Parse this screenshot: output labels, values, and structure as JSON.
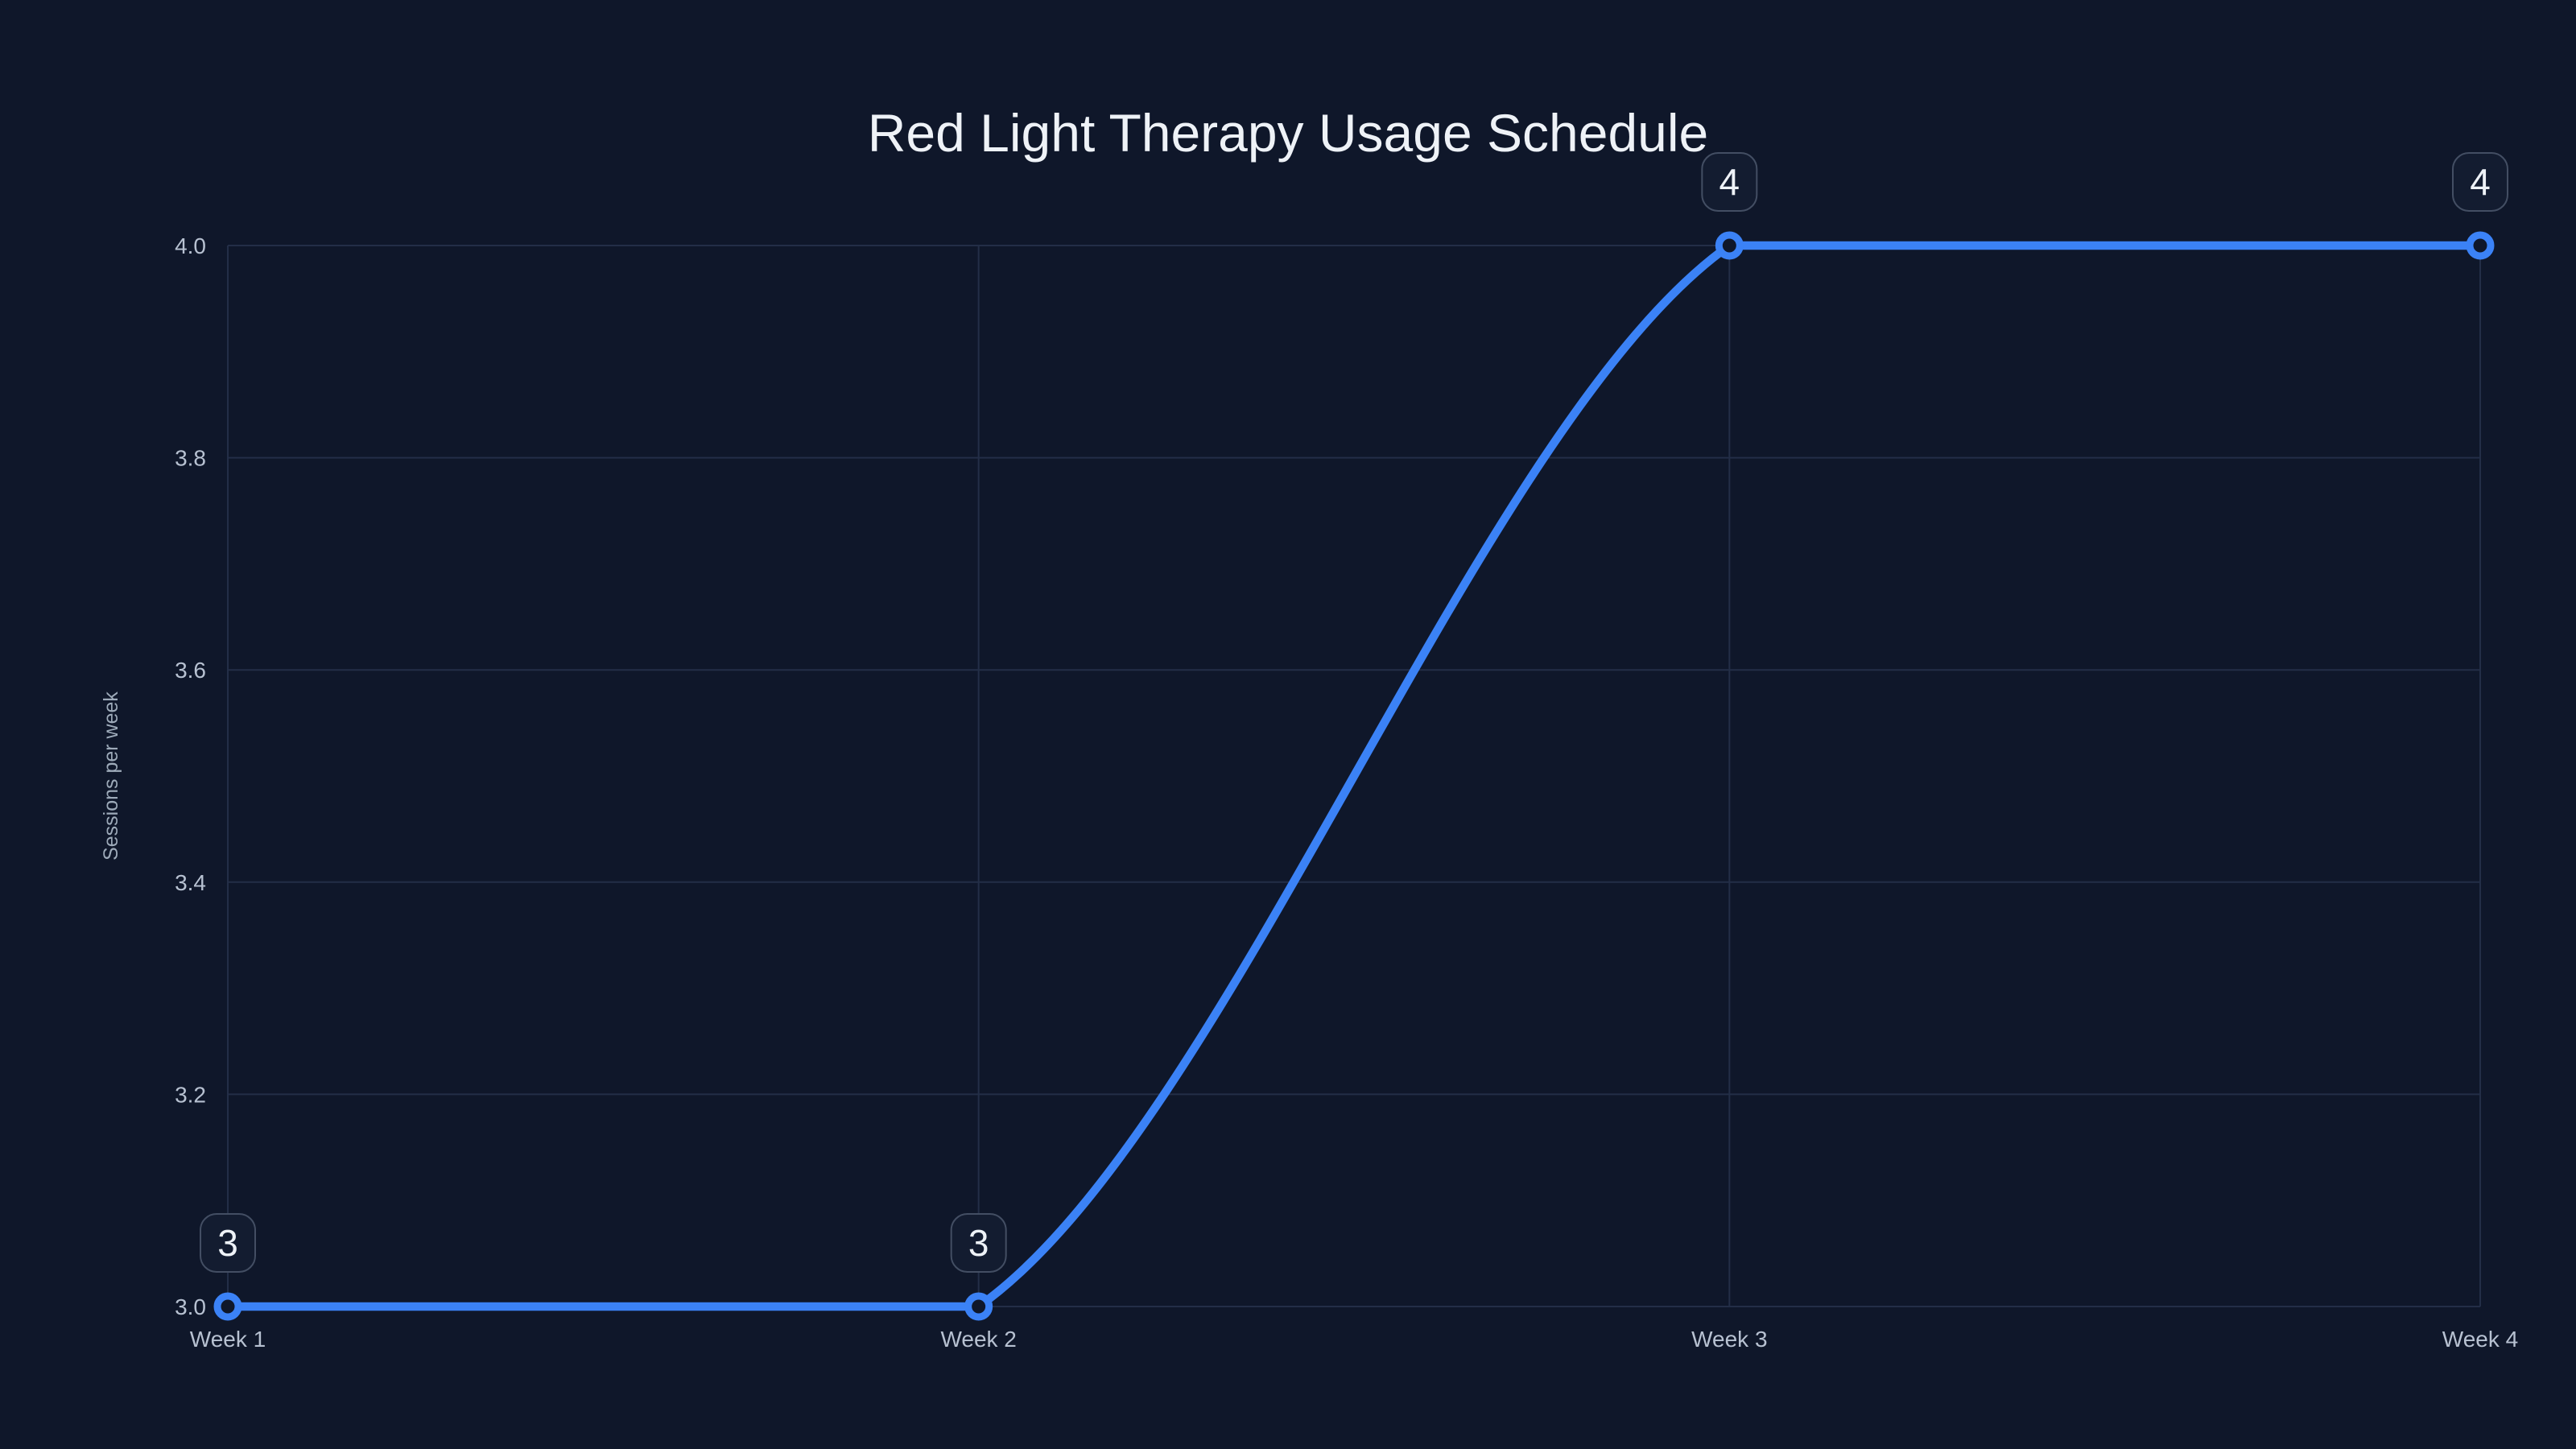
{
  "colors": {
    "background": "#0f172a",
    "gridline": "#232e47",
    "line": "#3b82f6",
    "marker_fill": "#0f172a",
    "title_text": "#eef2f7",
    "tick_text": "#b7c1d1",
    "axis_title_text": "#9daab9",
    "data_label_text": "#eef2f7",
    "data_label_border": "#434e63",
    "data_label_fill": "#131c30"
  },
  "chart_data": {
    "type": "line",
    "title": "Red Light Therapy Usage Schedule",
    "categories": [
      "Week 1",
      "Week 2",
      "Week 3",
      "Week 4"
    ],
    "series": [
      {
        "name": "Sessions per week",
        "values": [
          3,
          3,
          4,
          4
        ]
      }
    ],
    "data_labels": [
      "3",
      "3",
      "4",
      "4"
    ],
    "xlabel": "",
    "ylabel": "Sessions per week",
    "ylim": [
      3.0,
      4.0
    ],
    "yticks": [
      3.0,
      3.2,
      3.4,
      3.6,
      3.8,
      4.0
    ],
    "ytick_labels": [
      "3.0",
      "3.2",
      "3.4",
      "3.6",
      "3.8",
      "4.0"
    ],
    "grid": true,
    "legend_position": "none",
    "line_shape": "spline",
    "marker_style": "open-circle"
  }
}
